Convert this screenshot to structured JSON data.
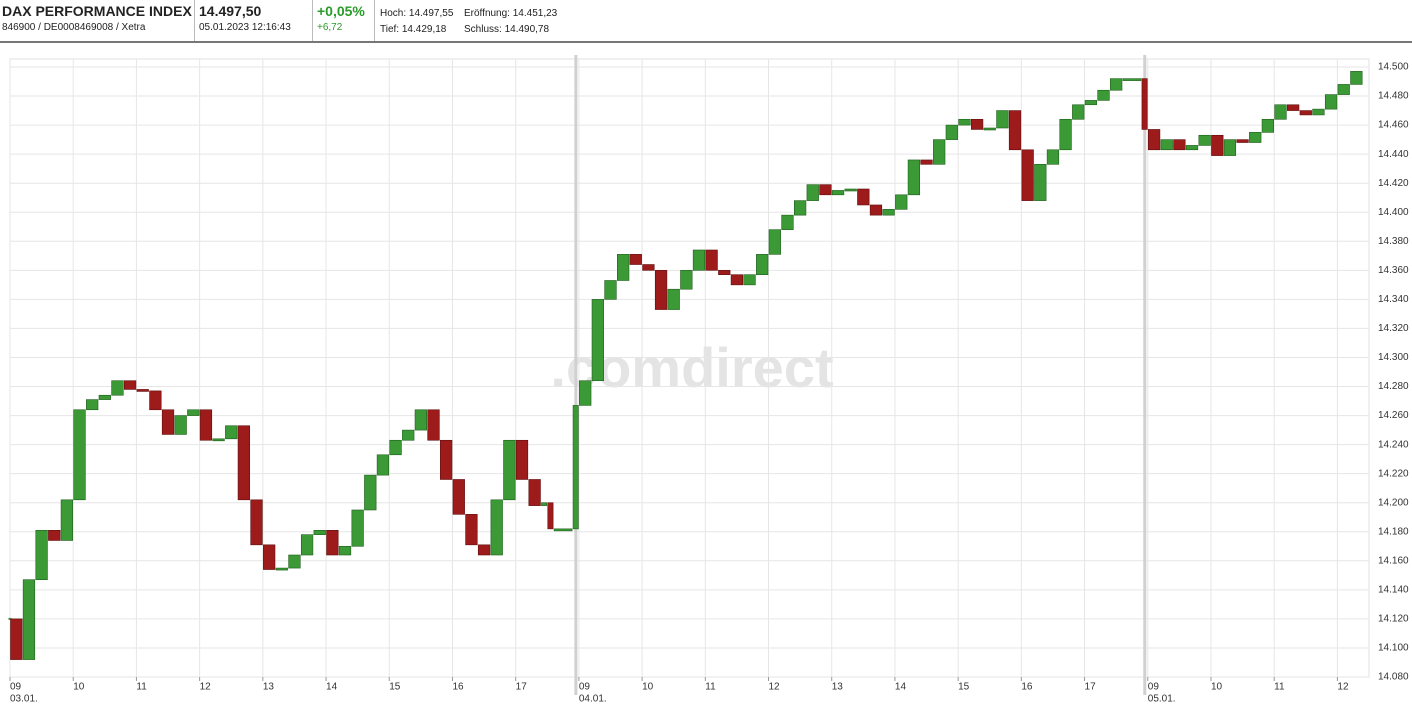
{
  "header": {
    "name": "DAX PERFORMANCE INDEX",
    "ids": "846900 / DE0008469008 / Xetra",
    "price": "14.497,50",
    "datetime": "05.01.2023 12:16:43",
    "change_pct": "+0,05%",
    "change_abs": "+6,72",
    "high": "Hoch: 14.497,55",
    "open": "Eröffnung: 14.451,23",
    "low": "Tief: 14.429,18",
    "close": "Schluss: 14.490,78"
  },
  "chart_data": {
    "type": "candlestick",
    "watermark": ".comdirect",
    "up_color": "#3c9a36",
    "down_color": "#9e1b1b",
    "grid": true,
    "xlim": [
      9,
      30.5
    ],
    "ylim": [
      14080,
      14500
    ],
    "xticks": [
      {
        "value": 9,
        "label": "09"
      },
      {
        "value": 10,
        "label": "10"
      },
      {
        "value": 11,
        "label": "11"
      },
      {
        "value": 12,
        "label": "12"
      },
      {
        "value": 13,
        "label": "13"
      },
      {
        "value": 14,
        "label": "14"
      },
      {
        "value": 15,
        "label": "15"
      },
      {
        "value": 16,
        "label": "16"
      },
      {
        "value": 17,
        "label": "17"
      },
      {
        "value": 18,
        "label": "09"
      },
      {
        "value": 19,
        "label": "10"
      },
      {
        "value": 20,
        "label": "11"
      },
      {
        "value": 21,
        "label": "12"
      },
      {
        "value": 22,
        "label": "13"
      },
      {
        "value": 23,
        "label": "14"
      },
      {
        "value": 24,
        "label": "15"
      },
      {
        "value": 25,
        "label": "16"
      },
      {
        "value": 26,
        "label": "17"
      },
      {
        "value": 27,
        "label": "09"
      },
      {
        "value": 28,
        "label": "10"
      },
      {
        "value": 29,
        "label": "11"
      },
      {
        "value": 30,
        "label": "12"
      }
    ],
    "day_labels": [
      {
        "value": 9,
        "label": "03.01."
      },
      {
        "value": 18,
        "label": "04.01."
      },
      {
        "value": 27,
        "label": "05.01."
      }
    ],
    "yticks": [
      {
        "value": 14080,
        "label": "14.080"
      },
      {
        "value": 14100,
        "label": "14.100"
      },
      {
        "value": 14120,
        "label": "14.120"
      },
      {
        "value": 14140,
        "label": "14.140"
      },
      {
        "value": 14160,
        "label": "14.160"
      },
      {
        "value": 14180,
        "label": "14.180"
      },
      {
        "value": 14200,
        "label": "14.200"
      },
      {
        "value": 14220,
        "label": "14.220"
      },
      {
        "value": 14240,
        "label": "14.240"
      },
      {
        "value": 14260,
        "label": "14.260"
      },
      {
        "value": 14280,
        "label": "14.280"
      },
      {
        "value": 14300,
        "label": "14.300"
      },
      {
        "value": 14320,
        "label": "14.320"
      },
      {
        "value": 14340,
        "label": "14.340"
      },
      {
        "value": 14360,
        "label": "14.360"
      },
      {
        "value": 14380,
        "label": "14.380"
      },
      {
        "value": 14400,
        "label": "14.400"
      },
      {
        "value": 14420,
        "label": "14.420"
      },
      {
        "value": 14440,
        "label": "14.440"
      },
      {
        "value": 14460,
        "label": "14.460"
      },
      {
        "value": 14480,
        "label": "14.480"
      },
      {
        "value": 14500,
        "label": "14.500"
      }
    ],
    "x": [
      9.0,
      9.2,
      9.4,
      9.6,
      9.8,
      10.0,
      10.2,
      10.4,
      10.6,
      10.8,
      11.0,
      11.2,
      11.4,
      11.6,
      11.8,
      12.0,
      12.2,
      12.4,
      12.6,
      12.8,
      13.0,
      13.2,
      13.4,
      13.6,
      13.8,
      14.0,
      14.2,
      14.4,
      14.6,
      14.8,
      15.0,
      15.2,
      15.4,
      15.6,
      15.8,
      16.0,
      16.2,
      16.4,
      16.6,
      16.8,
      17.0,
      17.2,
      17.4,
      17.5,
      17.6,
      17.9,
      18.0,
      18.2,
      18.4,
      18.6,
      18.8,
      19.0,
      19.2,
      19.4,
      19.6,
      19.8,
      20.0,
      20.2,
      20.4,
      20.6,
      20.8,
      21.0,
      21.2,
      21.4,
      21.6,
      21.8,
      22.0,
      22.2,
      22.4,
      22.6,
      22.8,
      23.0,
      23.2,
      23.4,
      23.6,
      23.8,
      24.0,
      24.2,
      24.4,
      24.6,
      24.8,
      25.0,
      25.2,
      25.4,
      25.6,
      25.8,
      26.0,
      26.2,
      26.4,
      26.6,
      26.9,
      27.0,
      27.2,
      27.4,
      27.6,
      27.8,
      28.0,
      28.2,
      28.4,
      28.6,
      28.8,
      29.0,
      29.2,
      29.4,
      29.6,
      29.8,
      30.0,
      30.2,
      30.4
    ],
    "values": [
      14120,
      14092,
      14147,
      14181,
      14174,
      14202,
      14264,
      14271,
      14274,
      14284,
      14278,
      14277,
      14264,
      14247,
      14260,
      14264,
      14243,
      14244,
      14253,
      14202,
      14171,
      14154,
      14155,
      14164,
      14178,
      14181,
      14164,
      14170,
      14195,
      14219,
      14233,
      14243,
      14250,
      14264,
      14243,
      14216,
      14192,
      14171,
      14164,
      14202,
      14243,
      14216,
      14198,
      14200,
      14182,
      14182,
      14267,
      14284,
      14340,
      14353,
      14371,
      14364,
      14360,
      14333,
      14347,
      14360,
      14374,
      14360,
      14357,
      14350,
      14357,
      14371,
      14388,
      14398,
      14408,
      14419,
      14412,
      14415,
      14416,
      14405,
      14398,
      14402,
      14412,
      14436,
      14433,
      14450,
      14460,
      14464,
      14457,
      14458,
      14470,
      14443,
      14408,
      14433,
      14443,
      14464,
      14474,
      14477,
      14484,
      14492,
      14492,
      14457,
      14443,
      14450,
      14443,
      14446,
      14453,
      14439,
      14450,
      14448,
      14455,
      14464,
      14474,
      14470,
      14467,
      14471,
      14481,
      14488,
      14497
    ]
  }
}
